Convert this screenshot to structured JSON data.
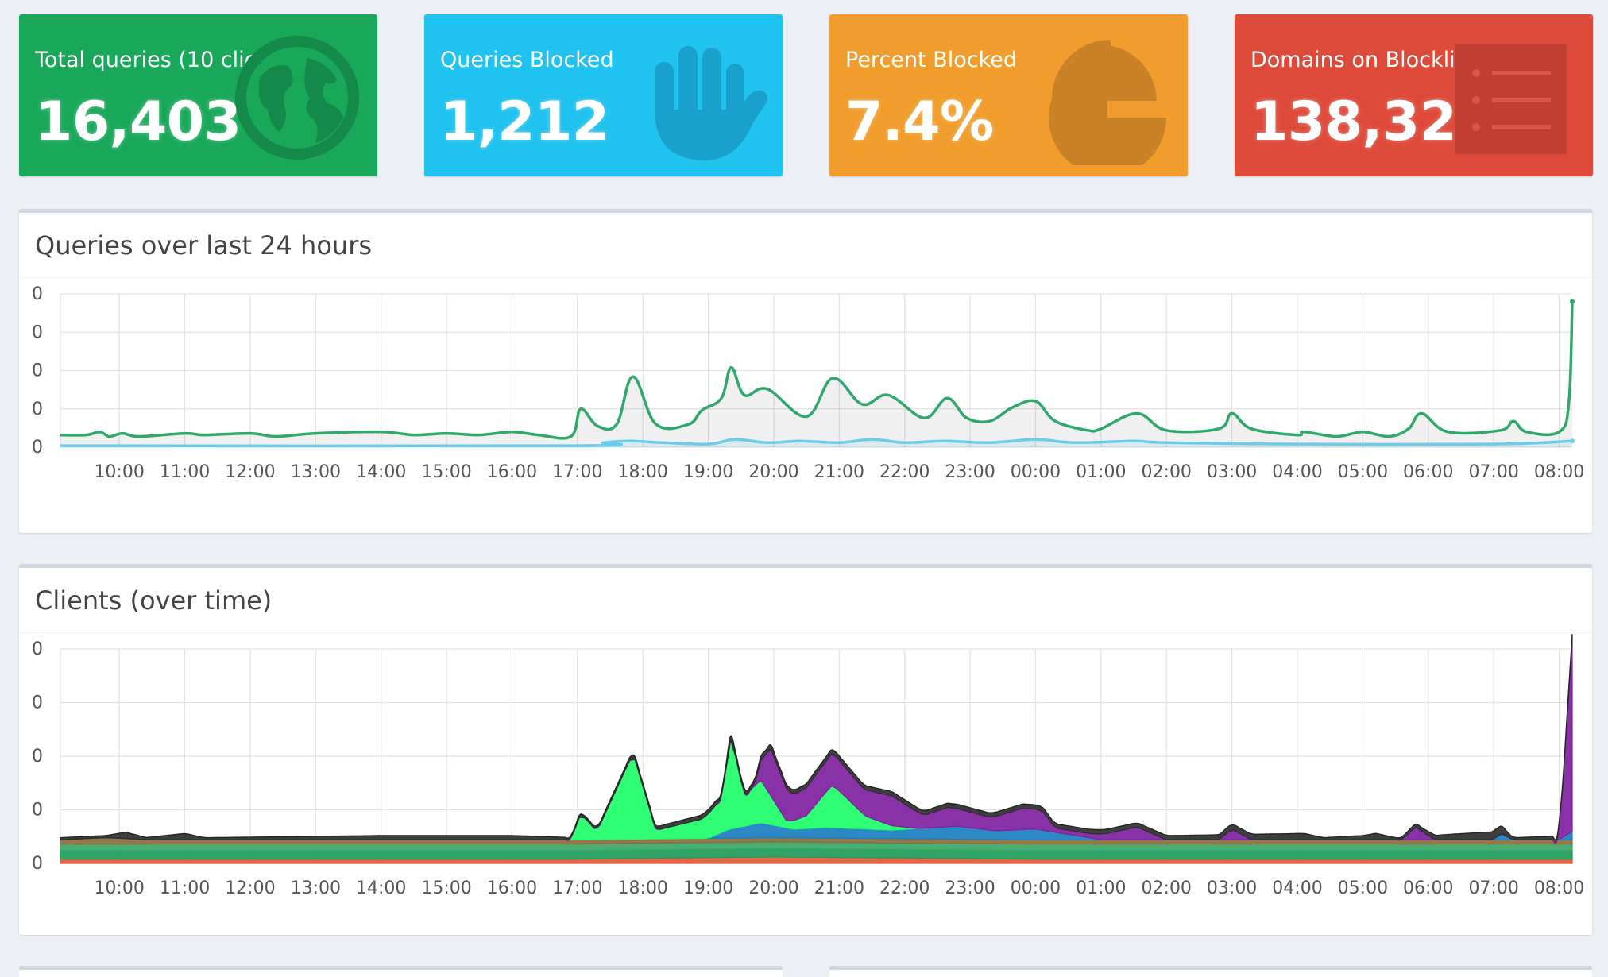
{
  "stats": {
    "total": {
      "label": "Total queries (10 clients)",
      "value": "16,403",
      "icon": "globe-icon"
    },
    "blocked": {
      "label": "Queries Blocked",
      "value": "1,212",
      "icon": "hand-icon"
    },
    "percent": {
      "label": "Percent Blocked",
      "value": "7.4%",
      "icon": "pie-chart-icon"
    },
    "domains": {
      "label": "Domains on Blocklist",
      "value": "138,322",
      "icon": "list-icon"
    }
  },
  "colors": {
    "total": "#19a85a",
    "blocked": "#20c2ef",
    "percent": "#f09d2d",
    "domains": "#dd4a3a",
    "permitted_line": "#2fa86a",
    "blocked_line": "#6ccbe8"
  },
  "queries_panel": {
    "title": "Queries over last 24 hours"
  },
  "clients_panel": {
    "title": "Clients (over time)"
  },
  "chart_data": [
    {
      "type": "line",
      "title": "Queries over last 24 hours",
      "y_tick_labels": [
        "0",
        "0",
        "0",
        "0",
        "0"
      ],
      "x_tick_labels": [
        "10:00",
        "11:00",
        "12:00",
        "13:00",
        "14:00",
        "15:00",
        "16:00",
        "17:00",
        "18:00",
        "19:00",
        "20:00",
        "21:00",
        "22:00",
        "23:00",
        "00:00",
        "01:00",
        "02:00",
        "03:00",
        "04:00",
        "05:00",
        "06:00",
        "07:00",
        "08:00"
      ],
      "x_start_hour": 9.1,
      "x_end_hour": 32.2,
      "ylim": [
        0,
        100
      ],
      "grid": true,
      "series": [
        {
          "key": "permitted",
          "color": "#2fa86a",
          "fill": "rgba(0,0,0,0.06)",
          "points": [
            [
              9.1,
              8
            ],
            [
              9.5,
              8
            ],
            [
              9.7,
              10
            ],
            [
              9.85,
              7
            ],
            [
              10.05,
              9
            ],
            [
              10.3,
              7
            ],
            [
              11,
              9
            ],
            [
              11.3,
              8
            ],
            [
              12,
              9
            ],
            [
              12.4,
              7
            ],
            [
              13,
              9
            ],
            [
              14,
              10
            ],
            [
              14.5,
              8
            ],
            [
              15,
              9
            ],
            [
              15.5,
              8
            ],
            [
              16,
              10
            ],
            [
              16.4,
              8
            ],
            [
              16.9,
              7
            ],
            [
              17.05,
              25
            ],
            [
              17.3,
              14
            ],
            [
              17.6,
              15
            ],
            [
              17.85,
              46
            ],
            [
              18.2,
              15
            ],
            [
              18.7,
              15
            ],
            [
              18.9,
              24
            ],
            [
              19.2,
              32
            ],
            [
              19.35,
              52
            ],
            [
              19.55,
              34
            ],
            [
              19.9,
              38
            ],
            [
              20.5,
              20
            ],
            [
              20.9,
              45
            ],
            [
              21.35,
              28
            ],
            [
              21.75,
              34
            ],
            [
              22.3,
              19
            ],
            [
              22.65,
              32
            ],
            [
              22.95,
              19
            ],
            [
              23.3,
              17
            ],
            [
              23.65,
              26
            ],
            [
              24,
              30
            ],
            [
              24.3,
              17
            ],
            [
              24.8,
              11
            ],
            [
              25,
              12
            ],
            [
              25.55,
              22
            ],
            [
              26,
              11
            ],
            [
              26.8,
              12
            ],
            [
              27,
              22
            ],
            [
              27.3,
              12
            ],
            [
              28,
              8
            ],
            [
              28.1,
              10
            ],
            [
              28.6,
              7
            ],
            [
              29,
              10
            ],
            [
              29.4,
              7
            ],
            [
              29.7,
              12
            ],
            [
              29.9,
              22
            ],
            [
              30.3,
              10
            ],
            [
              31.1,
              11
            ],
            [
              31.3,
              17
            ],
            [
              31.5,
              10
            ],
            [
              32,
              10
            ],
            [
              32.15,
              30
            ],
            [
              32.2,
              95
            ]
          ]
        },
        {
          "key": "blocked",
          "color": "#6ccbe8",
          "fill": "rgba(32,194,239,0.10)",
          "points": [
            [
              9.1,
              1
            ],
            [
              16.9,
              1
            ],
            [
              17.4,
              3
            ],
            [
              17.8,
              4
            ],
            [
              18.3,
              3
            ],
            [
              19,
              2
            ],
            [
              19.4,
              5
            ],
            [
              19.9,
              3
            ],
            [
              20.4,
              4
            ],
            [
              21,
              3
            ],
            [
              21.5,
              5
            ],
            [
              22,
              3
            ],
            [
              22.6,
              4
            ],
            [
              23.3,
              3
            ],
            [
              24,
              5
            ],
            [
              24.6,
              3
            ],
            [
              25.5,
              4
            ],
            [
              26,
              3
            ],
            [
              28,
              2
            ],
            [
              31,
              2
            ],
            [
              32.2,
              4
            ]
          ]
        }
      ]
    },
    {
      "type": "area",
      "title": "Clients (over time)",
      "y_tick_labels": [
        "0",
        "0",
        "0",
        "0",
        "0"
      ],
      "x_tick_labels": [
        "10:00",
        "11:00",
        "12:00",
        "13:00",
        "14:00",
        "15:00",
        "16:00",
        "17:00",
        "18:00",
        "19:00",
        "20:00",
        "21:00",
        "22:00",
        "23:00",
        "00:00",
        "01:00",
        "02:00",
        "03:00",
        "04:00",
        "05:00",
        "06:00",
        "07:00",
        "08:00"
      ],
      "x_start_hour": 9.1,
      "x_end_hour": 32.2,
      "ylim": [
        0,
        100
      ],
      "stacked": true,
      "grid": true,
      "series": [
        {
          "color": "#e05a3a",
          "points": [
            [
              9.1,
              2
            ],
            [
              16.9,
              2
            ],
            [
              20,
              3
            ],
            [
              24,
              2
            ],
            [
              32.2,
              2
            ]
          ]
        },
        {
          "color": "#1e9c5a",
          "points": [
            [
              9.1,
              4
            ],
            [
              32.2,
              4
            ]
          ]
        },
        {
          "color": "#3aa868",
          "points": [
            [
              9.1,
              3
            ],
            [
              32.2,
              3
            ]
          ]
        },
        {
          "color": "#8a6d3b",
          "points": [
            [
              9.1,
              2
            ],
            [
              9.8,
              3
            ],
            [
              10.5,
              2
            ],
            [
              32.2,
              2
            ]
          ]
        },
        {
          "color": "#1a7fc0",
          "points": [
            [
              9.1,
              0
            ],
            [
              19,
              0
            ],
            [
              19.3,
              4
            ],
            [
              19.8,
              7
            ],
            [
              20.3,
              4
            ],
            [
              20.8,
              5
            ],
            [
              21.8,
              4
            ],
            [
              22.8,
              6
            ],
            [
              23.4,
              4
            ],
            [
              24,
              5
            ],
            [
              24.6,
              2
            ],
            [
              25,
              0
            ],
            [
              31,
              0
            ],
            [
              31.1,
              3
            ],
            [
              31.3,
              0
            ],
            [
              32,
              0
            ],
            [
              32.2,
              4
            ]
          ]
        },
        {
          "color": "#1eff6a",
          "points": [
            [
              9.1,
              0
            ],
            [
              16.9,
              0
            ],
            [
              17.05,
              12
            ],
            [
              17.3,
              4
            ],
            [
              17.85,
              40
            ],
            [
              18.2,
              4
            ],
            [
              18.9,
              9
            ],
            [
              19.2,
              16
            ],
            [
              19.35,
              43
            ],
            [
              19.55,
              14
            ],
            [
              19.8,
              20
            ],
            [
              20.2,
              3
            ],
            [
              20.5,
              6
            ],
            [
              20.9,
              20
            ],
            [
              21.4,
              6
            ],
            [
              21.8,
              2
            ],
            [
              22.2,
              0
            ],
            [
              32.2,
              0
            ]
          ]
        },
        {
          "color": "#7f1fa0",
          "points": [
            [
              9.1,
              0
            ],
            [
              19.7,
              0
            ],
            [
              19.95,
              22
            ],
            [
              20.3,
              12
            ],
            [
              20.9,
              15
            ],
            [
              21.35,
              12
            ],
            [
              21.8,
              14
            ],
            [
              22.3,
              6
            ],
            [
              22.65,
              9
            ],
            [
              23.3,
              6
            ],
            [
              23.8,
              10
            ],
            [
              24.1,
              9
            ],
            [
              24.3,
              2
            ],
            [
              24.8,
              2
            ],
            [
              25.1,
              3
            ],
            [
              25.55,
              6
            ],
            [
              26,
              0
            ],
            [
              26.8,
              0
            ],
            [
              27,
              5
            ],
            [
              27.3,
              0
            ],
            [
              29.6,
              0
            ],
            [
              29.8,
              6
            ],
            [
              30.1,
              0
            ],
            [
              32,
              0
            ],
            [
              32.2,
              90
            ]
          ]
        },
        {
          "color": "#2e2e2e",
          "points": [
            [
              9.1,
              1
            ],
            [
              9.8,
              1
            ],
            [
              10.1,
              3
            ],
            [
              10.4,
              1
            ],
            [
              11,
              3
            ],
            [
              11.3,
              1
            ],
            [
              14,
              2
            ],
            [
              16,
              2
            ],
            [
              17,
              1
            ],
            [
              19,
              2
            ],
            [
              22,
              2
            ],
            [
              26,
              2
            ],
            [
              28.1,
              3
            ],
            [
              28.4,
              1
            ],
            [
              29,
              2
            ],
            [
              29.2,
              3
            ],
            [
              29.5,
              1
            ],
            [
              31.1,
              4
            ],
            [
              31.3,
              1
            ],
            [
              32.2,
              2
            ]
          ]
        }
      ]
    }
  ]
}
